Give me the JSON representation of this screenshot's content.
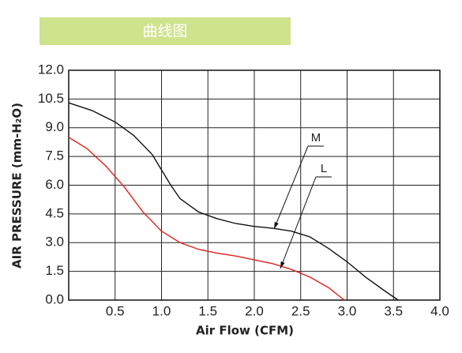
{
  "chart_data": {
    "type": "line",
    "header": "曲线图",
    "x_label": "Air Flow (CFM)",
    "y_label": "AIR PRESSURE (mm-H₂O)",
    "xlim": [
      0,
      4
    ],
    "ylim": [
      0,
      12
    ],
    "xticks": [
      0.5,
      {
        "value": 1,
        "label": "1.0"
      },
      1.5,
      {
        "value": 2,
        "label": "2.0"
      },
      2.5,
      {
        "value": 3,
        "label": "3.0"
      },
      3.5,
      {
        "value": 4,
        "label": "4.0"
      }
    ],
    "yticks": [
      {
        "value": 0,
        "label": "0.0"
      },
      1.5,
      {
        "value": 3,
        "label": "3.0"
      },
      4.5,
      {
        "value": 6,
        "label": "6.0"
      },
      7.5,
      {
        "value": 9,
        "label": "9.0"
      },
      10.5,
      {
        "value": 12,
        "label": "12.0"
      }
    ],
    "grid": true,
    "series": [
      {
        "name": "M",
        "color": "#111111",
        "x": [
          0,
          0.25,
          0.5,
          0.7,
          0.9,
          1.0,
          1.1,
          1.2,
          1.4,
          1.6,
          1.8,
          2.0,
          2.2,
          2.4,
          2.6,
          2.8,
          3.0,
          3.2,
          3.4,
          3.55
        ],
        "values": [
          10.3,
          9.9,
          9.3,
          8.6,
          7.6,
          6.8,
          6.0,
          5.3,
          4.6,
          4.25,
          4.0,
          3.85,
          3.75,
          3.6,
          3.3,
          2.7,
          2.0,
          1.2,
          0.5,
          0
        ]
      },
      {
        "name": "L",
        "color": "#e0201b",
        "x": [
          0,
          0.2,
          0.4,
          0.6,
          0.8,
          1.0,
          1.2,
          1.4,
          1.6,
          1.8,
          2.0,
          2.2,
          2.4,
          2.6,
          2.8,
          2.97
        ],
        "values": [
          8.5,
          7.9,
          7.0,
          5.9,
          4.6,
          3.6,
          3.0,
          2.65,
          2.45,
          2.3,
          2.1,
          1.9,
          1.6,
          1.2,
          0.65,
          0
        ]
      }
    ]
  }
}
